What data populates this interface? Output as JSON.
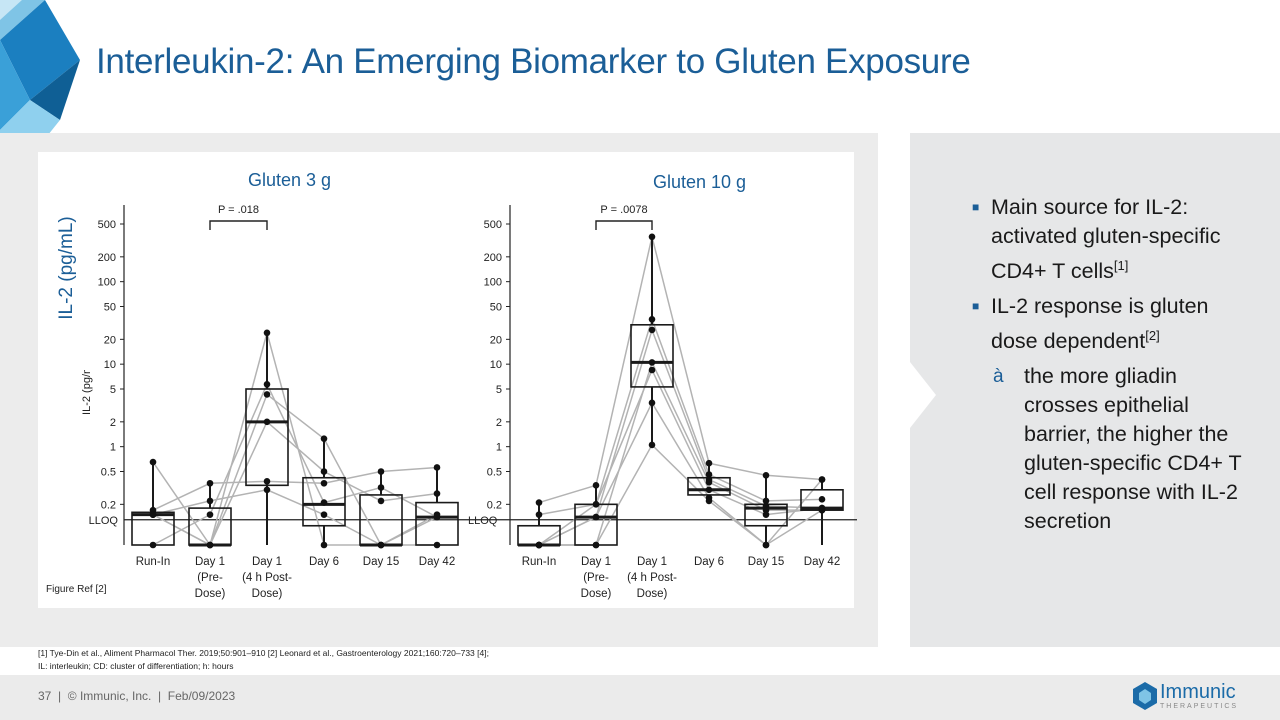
{
  "title": "Interleukin-2: An Emerging Biomarker to Gluten Exposure",
  "figure": {
    "y_axis_label": "IL-2 (pg/mL)",
    "figure_ref": "Figure Ref [2]"
  },
  "bullets": {
    "b1_text": "Main source for IL-2: activated gluten-specific CD4+ T cells",
    "b1_ref": "[1]",
    "b2_text": "IL-2 response is gluten dose dependent",
    "b2_ref": "[2]",
    "sub_marker": "à",
    "sub_text": "the more gliadin crosses epithelial barrier, the higher the gluten-specific CD4+ T cell response with IL-2 secretion"
  },
  "references": {
    "line1": "[1] Tye-Din et al., Aliment Pharmacol Ther. 2019;50:901–910 [2] Leonard et al., Gastroenterology 2021;160:720–733 [4];",
    "line2": "IL: interleukin; CD: cluster of differentiation; h: hours"
  },
  "footer": "37  |  © Immunic, Inc.  |  Feb/09/2023",
  "logo": {
    "name": "Immunic",
    "sub": "THERAPEUTICS"
  },
  "colors": {
    "brand": "#1b5e97",
    "line": "#b3b3b3",
    "box": "#1a1a1a"
  },
  "chart_data": [
    {
      "type": "box",
      "title": "Gluten 3 g",
      "ylabel": "IL-2 (pg/mL)",
      "yscale": "log",
      "yticks": [
        500,
        200,
        100,
        50,
        20,
        10,
        5,
        2,
        1,
        0.5,
        0.2
      ],
      "ytick_labels": [
        "500",
        "200",
        "100",
        "50",
        "20",
        "10",
        "5",
        "2",
        "1",
        "0.5",
        "0.2"
      ],
      "lloq_label": "LLOQ",
      "lloq_value": 0.13,
      "below_lloq": null,
      "categories": [
        [
          "Run-In"
        ],
        [
          "Day 1",
          "(Pre-",
          "Dose)"
        ],
        [
          "Day 1",
          "(4 h Post-",
          "Dose)"
        ],
        [
          "Day 6"
        ],
        [
          "Day 15"
        ],
        [
          "Day 42"
        ]
      ],
      "annotation": {
        "text": "P = .018",
        "from": 1,
        "to": 2
      },
      "boxes": [
        {
          "low": null,
          "q1": null,
          "median": 0.15,
          "q3": 0.16,
          "high": 0.65
        },
        {
          "low": null,
          "q1": null,
          "median": null,
          "q3": 0.18,
          "high": 0.36
        },
        {
          "low": null,
          "q1": 0.34,
          "median": 2,
          "q3": 5,
          "high": 24
        },
        {
          "low": null,
          "q1": 0.11,
          "median": 0.2,
          "q3": 0.42,
          "high": 1.25
        },
        {
          "low": null,
          "q1": null,
          "median": null,
          "q3": 0.26,
          "high": 0.5
        },
        {
          "low": null,
          "q1": null,
          "median": 0.14,
          "q3": 0.21,
          "high": 0.56
        }
      ],
      "subjects": [
        [
          0.15,
          null,
          24,
          null,
          null,
          null
        ],
        [
          0.17,
          0.36,
          0.38,
          0.36,
          0.5,
          0.56
        ],
        [
          0.65,
          null,
          2,
          0.5,
          0.22,
          0.27
        ],
        [
          null,
          0.15,
          5.7,
          0.21,
          0.32,
          0.14
        ],
        [
          0.15,
          0.22,
          0.3,
          0.15,
          null,
          0.15
        ],
        [
          0.15,
          null,
          4.3,
          1.25,
          null,
          0.14
        ]
      ]
    },
    {
      "type": "box",
      "title": "Gluten 10 g",
      "yscale": "log",
      "yticks": [
        500,
        200,
        100,
        50,
        20,
        10,
        5,
        2,
        1,
        0.5,
        0.2
      ],
      "ytick_labels": [
        "500",
        "200",
        "100",
        "50",
        "20",
        "10",
        "5",
        "2",
        "1",
        "0.5",
        "0.2"
      ],
      "lloq_label": "LLOQ",
      "lloq_value": 0.13,
      "below_lloq": null,
      "categories": [
        [
          "Run-In"
        ],
        [
          "Day 1",
          "(Pre-",
          "Dose)"
        ],
        [
          "Day 1",
          "(4 h Post-",
          "Dose)"
        ],
        [
          "Day 6"
        ],
        [
          "Day 15"
        ],
        [
          "Day 42"
        ]
      ],
      "annotation": {
        "text": "P = .0078",
        "from": 1,
        "to": 2
      },
      "boxes": [
        {
          "low": null,
          "q1": null,
          "median": null,
          "q3": 0.11,
          "high": 0.21
        },
        {
          "low": null,
          "q1": null,
          "median": 0.14,
          "q3": 0.2,
          "high": 0.34
        },
        {
          "low": 1.05,
          "q1": 5.3,
          "median": 10.5,
          "q3": 30,
          "high": 350
        },
        {
          "low": 0.22,
          "q1": 0.26,
          "median": 0.3,
          "q3": 0.42,
          "high": 0.63
        },
        {
          "low": null,
          "q1": 0.11,
          "median": 0.18,
          "q3": 0.2,
          "high": 0.45
        },
        {
          "low": null,
          "q1": 0.17,
          "median": 0.18,
          "q3": 0.3,
          "high": 0.4
        }
      ],
      "subjects": [
        [
          0.21,
          0.34,
          350,
          0.63,
          0.45,
          0.4
        ],
        [
          0.15,
          0.2,
          35,
          0.46,
          0.22,
          0.23
        ],
        [
          null,
          0.14,
          26,
          0.4,
          0.19,
          0.18
        ],
        [
          null,
          null,
          10.5,
          0.37,
          0.17,
          0.17
        ],
        [
          null,
          0.2,
          8.5,
          0.3,
          0.15,
          0.18
        ],
        [
          null,
          0.14,
          3.4,
          0.24,
          null,
          0.4
        ],
        [
          null,
          null,
          1.05,
          0.22,
          null,
          0.17
        ]
      ]
    }
  ]
}
